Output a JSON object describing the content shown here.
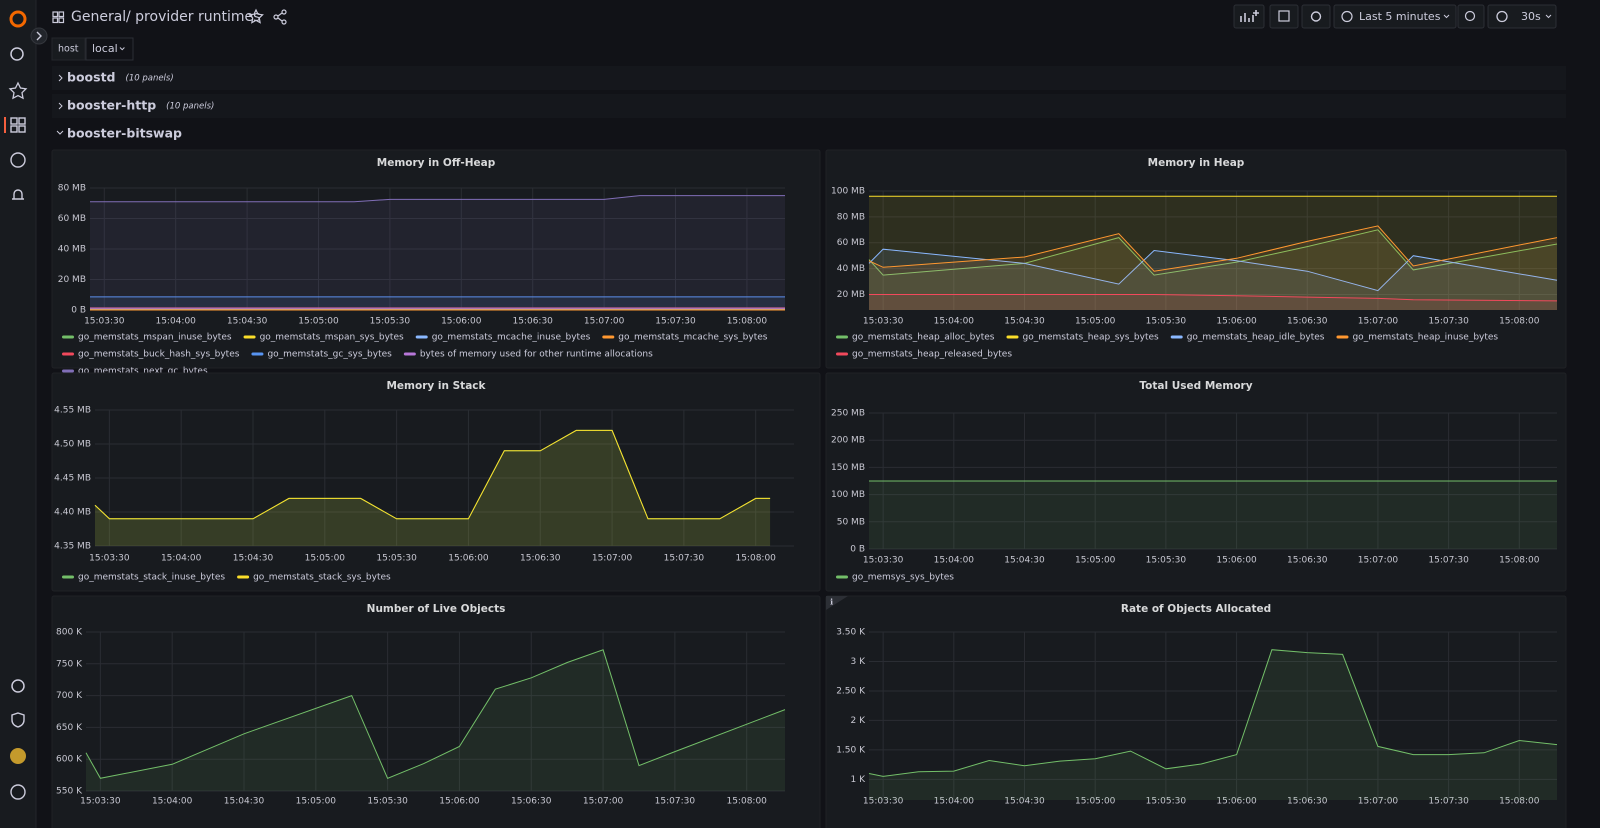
{
  "header": {
    "folder": "General",
    "title": "/ provider runtimes",
    "time_range": "Last 5 minutes",
    "refresh": "30s"
  },
  "variables": [
    {
      "label": "host",
      "value": "local"
    }
  ],
  "rows": [
    {
      "title": "boostd",
      "note": "(10 panels)"
    },
    {
      "title": "booster-http",
      "note": "(10 panels)"
    },
    {
      "title": "booster-bitswap"
    }
  ],
  "chart_data": [
    {
      "type": "line",
      "title": "Memory in Off-Heap",
      "grid": true,
      "x": [
        "15:03:24",
        "15:05:15",
        "15:05:30",
        "15:07:00",
        "15:07:15",
        "15:08:16"
      ],
      "xlim": [
        "15:03:24",
        "15:08:16"
      ],
      "xticks": [
        "15:03:30",
        "15:04:00",
        "15:04:30",
        "15:05:00",
        "15:05:30",
        "15:06:00",
        "15:06:30",
        "15:07:00",
        "15:07:30",
        "15:08:00"
      ],
      "ylim": [
        0,
        80
      ],
      "yticks": [
        {
          "value": 0,
          "label": "0 B"
        },
        {
          "value": 20,
          "label": "20 MB"
        },
        {
          "value": 40,
          "label": "40 MB"
        },
        {
          "value": 60,
          "label": "60 MB"
        },
        {
          "value": 80,
          "label": "80 MB"
        }
      ],
      "series": [
        {
          "name": "go_memstats_mspan_inuse_bytes",
          "color": "#73bf69",
          "values": [
            0.4,
            0.4,
            0.4,
            0.4,
            0.4,
            0.4
          ]
        },
        {
          "name": "go_memstats_mspan_sys_bytes",
          "color": "#fade2a",
          "values": [
            0.5,
            0.5,
            0.5,
            0.5,
            0.5,
            0.5
          ]
        },
        {
          "name": "go_memstats_mcache_inuse_bytes",
          "color": "#8ab8ff",
          "values": [
            0.02,
            0.02,
            0.02,
            0.02,
            0.02,
            0.02
          ]
        },
        {
          "name": "go_memstats_mcache_sys_bytes",
          "color": "#ff9830",
          "values": [
            0.03,
            0.03,
            0.03,
            0.03,
            0.03,
            0.03
          ]
        },
        {
          "name": "go_memstats_buck_hash_sys_bytes",
          "color": "#f2495c",
          "values": [
            1.4,
            1.4,
            1.4,
            1.4,
            1.4,
            1.4
          ]
        },
        {
          "name": "go_memstats_gc_sys_bytes",
          "color": "#5794f2",
          "values": [
            8.6,
            8.6,
            8.6,
            8.6,
            8.6,
            8.6
          ]
        },
        {
          "name": "bytes of memory used for other runtime allocations",
          "color": "#b877d9",
          "values": [
            1.1,
            1.1,
            1.1,
            1.1,
            1.1,
            1.1
          ]
        },
        {
          "name": "go_memstats_next_gc_bytes",
          "color": "#806eb7",
          "values": [
            71,
            71,
            72.5,
            72.5,
            75,
            75
          ]
        }
      ]
    },
    {
      "type": "line",
      "title": "Memory in Heap",
      "grid": true,
      "x": [
        "15:03:24",
        "15:03:30",
        "15:04:30",
        "15:05:10",
        "15:05:25",
        "15:06:00",
        "15:06:30",
        "15:07:00",
        "15:07:15",
        "15:08:16"
      ],
      "xlim": [
        "15:03:24",
        "15:08:16"
      ],
      "xticks": [
        "15:03:30",
        "15:04:00",
        "15:04:30",
        "15:05:00",
        "15:05:30",
        "15:06:00",
        "15:06:30",
        "15:07:00",
        "15:07:30",
        "15:08:00"
      ],
      "ylim": [
        8,
        100
      ],
      "yticks": [
        {
          "value": 20,
          "label": "20 MB"
        },
        {
          "value": 40,
          "label": "40 MB"
        },
        {
          "value": 60,
          "label": "60 MB"
        },
        {
          "value": 80,
          "label": "80 MB"
        },
        {
          "value": 100,
          "label": "100 MB"
        }
      ],
      "series": [
        {
          "name": "go_memstats_heap_alloc_bytes",
          "color": "#73bf69",
          "values": [
            47,
            35,
            44,
            64,
            35,
            45,
            57,
            70,
            39,
            59
          ]
        },
        {
          "name": "go_memstats_heap_sys_bytes",
          "color": "#fade2a",
          "values": [
            96,
            96,
            96,
            96,
            96,
            96,
            96,
            96,
            96,
            96
          ]
        },
        {
          "name": "go_memstats_heap_idle_bytes",
          "color": "#8ab8ff",
          "values": [
            44,
            55,
            44,
            28,
            54,
            46,
            38,
            23,
            50,
            31
          ]
        },
        {
          "name": "go_memstats_heap_inuse_bytes",
          "color": "#ff9830",
          "values": [
            46,
            41,
            49,
            67,
            38,
            48,
            61,
            73,
            42,
            64
          ]
        },
        {
          "name": "go_memstats_heap_released_bytes",
          "color": "#f2495c",
          "values": [
            20,
            20,
            20,
            20,
            20,
            19,
            18,
            17,
            16,
            15
          ]
        }
      ]
    },
    {
      "type": "line",
      "title": "Memory in Stack",
      "grid": true,
      "x": [
        "15:03:24",
        "15:03:30",
        "15:04:30",
        "15:04:45",
        "15:05:15",
        "15:05:30",
        "15:06:00",
        "15:06:15",
        "15:06:30",
        "15:06:45",
        "15:07:00",
        "15:07:15",
        "15:07:45",
        "15:08:00",
        "15:08:06"
      ],
      "xlim": [
        "15:03:24",
        "15:08:16"
      ],
      "xticks": [
        "15:03:30",
        "15:04:00",
        "15:04:30",
        "15:05:00",
        "15:05:30",
        "15:06:00",
        "15:06:30",
        "15:07:00",
        "15:07:30",
        "15:08:00"
      ],
      "ylim": [
        4.35,
        4.55
      ],
      "yticks": [
        {
          "value": 4.35,
          "label": "4.35 MB"
        },
        {
          "value": 4.4,
          "label": "4.40 MB"
        },
        {
          "value": 4.45,
          "label": "4.45 MB"
        },
        {
          "value": 4.5,
          "label": "4.50 MB"
        },
        {
          "value": 4.55,
          "label": "4.55 MB"
        }
      ],
      "series": [
        {
          "name": "go_memstats_stack_inuse_bytes",
          "color": "#73bf69",
          "values": [
            4.41,
            4.39,
            4.39,
            4.42,
            4.42,
            4.39,
            4.39,
            4.49,
            4.49,
            4.52,
            4.52,
            4.39,
            4.39,
            4.42,
            4.42
          ]
        },
        {
          "name": "go_memstats_stack_sys_bytes",
          "color": "#fade2a",
          "values": [
            4.41,
            4.39,
            4.39,
            4.42,
            4.42,
            4.39,
            4.39,
            4.49,
            4.49,
            4.52,
            4.52,
            4.39,
            4.39,
            4.42,
            4.42
          ]
        }
      ]
    },
    {
      "type": "line",
      "title": "Total Used Memory",
      "grid": true,
      "x": [
        "15:03:24",
        "15:08:16"
      ],
      "xlim": [
        "15:03:24",
        "15:08:16"
      ],
      "xticks": [
        "15:03:30",
        "15:04:00",
        "15:04:30",
        "15:05:00",
        "15:05:30",
        "15:06:00",
        "15:06:30",
        "15:07:00",
        "15:07:30",
        "15:08:00"
      ],
      "ylim": [
        0,
        250
      ],
      "yticks": [
        {
          "value": 0,
          "label": "0 B"
        },
        {
          "value": 50,
          "label": "50 MB"
        },
        {
          "value": 100,
          "label": "100 MB"
        },
        {
          "value": 150,
          "label": "150 MB"
        },
        {
          "value": 200,
          "label": "200 MB"
        },
        {
          "value": 250,
          "label": "250 MB"
        }
      ],
      "series": [
        {
          "name": "go_memsys_sys_bytes",
          "color": "#73bf69",
          "values": [
            125,
            125
          ]
        }
      ]
    },
    {
      "type": "line",
      "title": "Number of Live Objects",
      "grid": true,
      "x": [
        "15:03:24",
        "15:03:30",
        "15:04:00",
        "15:04:30",
        "15:05:15",
        "15:05:30",
        "15:05:45",
        "15:06:00",
        "15:06:15",
        "15:06:30",
        "15:06:45",
        "15:07:00",
        "15:07:15",
        "15:07:30",
        "15:08:16"
      ],
      "xlim": [
        "15:03:24",
        "15:08:16"
      ],
      "xticks": [
        "15:03:30",
        "15:04:00",
        "15:04:30",
        "15:05:00",
        "15:05:30",
        "15:06:00",
        "15:06:30",
        "15:07:00",
        "15:07:30",
        "15:08:00"
      ],
      "ylim": [
        550,
        800
      ],
      "yticks": [
        {
          "value": 550,
          "label": "550 K"
        },
        {
          "value": 600,
          "label": "600 K"
        },
        {
          "value": 650,
          "label": "650 K"
        },
        {
          "value": 700,
          "label": "700 K"
        },
        {
          "value": 750,
          "label": "750 K"
        },
        {
          "value": 800,
          "label": "800 K"
        }
      ],
      "color": "#73bf69",
      "values": [
        610,
        570,
        592,
        640,
        700,
        570,
        593,
        620,
        710,
        728,
        752,
        772,
        590,
        612,
        678
      ]
    },
    {
      "type": "line",
      "title": "Rate of Objects Allocated",
      "grid": true,
      "x": [
        "15:03:24",
        "15:03:30",
        "15:03:45",
        "15:04:00",
        "15:04:15",
        "15:04:30",
        "15:04:45",
        "15:05:00",
        "15:05:15",
        "15:05:30",
        "15:05:45",
        "15:06:00",
        "15:06:15",
        "15:06:30",
        "15:06:45",
        "15:07:00",
        "15:07:15",
        "15:07:30",
        "15:07:45",
        "15:08:00",
        "15:08:16"
      ],
      "xlim": [
        "15:03:24",
        "15:08:16"
      ],
      "xticks": [
        "15:03:30",
        "15:04:00",
        "15:04:30",
        "15:05:00",
        "15:05:30",
        "15:06:00",
        "15:06:30",
        "15:07:00",
        "15:07:30",
        "15:08:00"
      ],
      "ylim": [
        650,
        3500
      ],
      "yticks": [
        {
          "value": 1000,
          "label": "1 K"
        },
        {
          "value": 1500,
          "label": "1.50 K"
        },
        {
          "value": 2000,
          "label": "2 K"
        },
        {
          "value": 2500,
          "label": "2.50 K"
        },
        {
          "value": 3000,
          "label": "3 K"
        },
        {
          "value": 3500,
          "label": "3.50 K"
        }
      ],
      "color": "#73bf69",
      "values": [
        1100,
        1050,
        1130,
        1140,
        1320,
        1230,
        1310,
        1350,
        1480,
        1180,
        1260,
        1420,
        3200,
        3150,
        3120,
        1560,
        1420,
        1420,
        1450,
        1660,
        1590
      ]
    }
  ]
}
